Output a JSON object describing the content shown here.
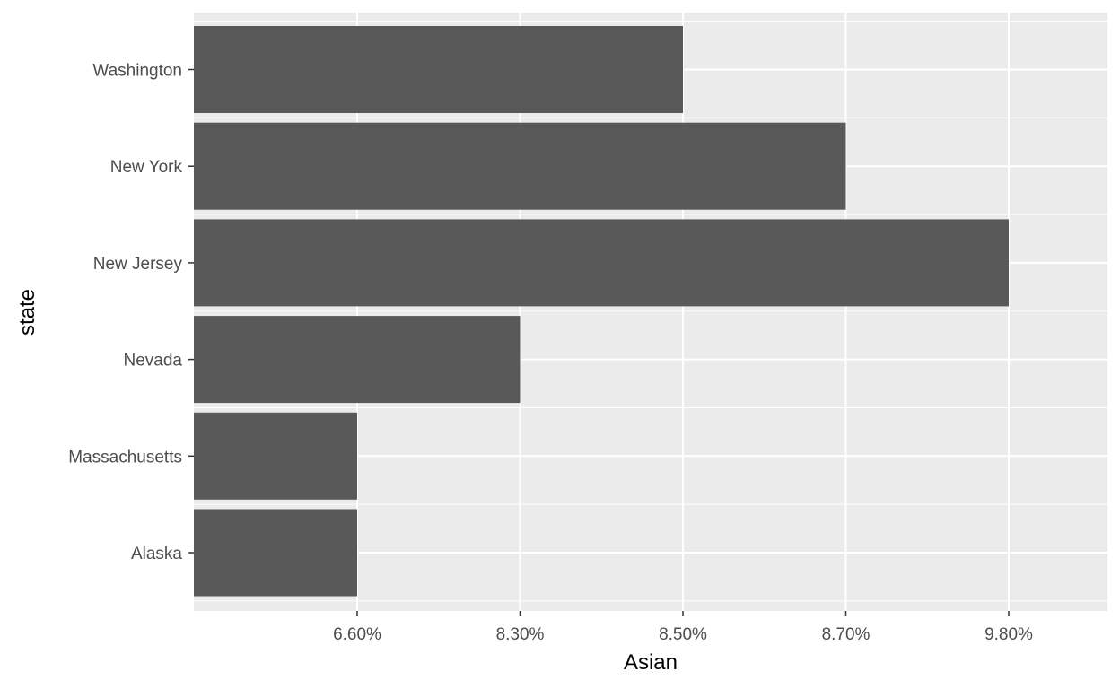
{
  "chart_data": {
    "type": "bar",
    "orientation": "horizontal",
    "categories": [
      "Alaska",
      "Massachusetts",
      "Nevada",
      "New Jersey",
      "New York",
      "Washington"
    ],
    "values": [
      "6.60%",
      "6.60%",
      "8.30%",
      "9.80%",
      "8.70%",
      "8.50%"
    ],
    "x_axis_type": "discrete",
    "x_ticks": [
      "6.60%",
      "8.30%",
      "8.50%",
      "8.70%",
      "9.80%"
    ],
    "xlabel": "Asian",
    "ylabel": "state",
    "grid": true,
    "colors": {
      "bar": "#595959",
      "panel": "#ebebeb",
      "grid": "#ffffff",
      "tick_label": "#4d4d4d",
      "axis_title": "#000000"
    }
  }
}
